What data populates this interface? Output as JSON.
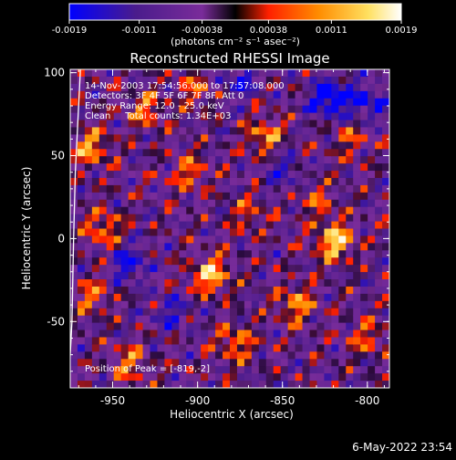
{
  "chart_data": {
    "type": "heatmap",
    "title": "Reconstructed RHESSI Image",
    "xlabel": "Heliocentric X (arcsec)",
    "ylabel": "Heliocentric Y (arcsec)",
    "xlim": [
      -975,
      -787
    ],
    "ylim": [
      -90,
      102
    ],
    "x_ticks": [
      -950,
      -900,
      -850,
      -800
    ],
    "y_ticks": [
      -50,
      0,
      50,
      100
    ],
    "colorbar": {
      "range": [
        -0.0019,
        0.0019
      ],
      "ticks": [
        -0.0019,
        -0.0011,
        -0.00038,
        0.00038,
        0.0011,
        0.0019
      ],
      "tick_labels": [
        "-0.0019",
        "-0.0011",
        "-0.00038",
        "0.00038",
        "0.0011",
        "0.0019"
      ],
      "unit_label": "(photons cm⁻² s⁻¹ asec⁻²)",
      "colors": [
        "#0000ff",
        "#4a1c8c",
        "#7a2c9a",
        "#000000",
        "#ff2000",
        "#ff8c00",
        "#ffe060",
        "#ffffff"
      ]
    },
    "annotations": [
      "14-Nov-2003 17:54:56.000 to 17:57:08.000",
      "Detectors: 3F 4F 5F 6F 7F 8F, Att 0",
      "Energy Range: 12.0 - 25.0 keV",
      "Clean     Total counts: 1.34E+03",
      "Position of Peak = [-819,-2]"
    ],
    "peak": {
      "x": -819,
      "y": -2
    },
    "limb_curve": [
      [
        -969,
        102
      ],
      [
        -972,
        40
      ],
      [
        -973,
        0
      ],
      [
        -974,
        -50
      ],
      [
        -976,
        -90
      ]
    ],
    "bright_sources": [
      {
        "x": -819,
        "y": -2,
        "v": 0.0019
      },
      {
        "x": -892,
        "y": -22,
        "v": 0.0017
      },
      {
        "x": -860,
        "y": 62,
        "v": 0.0013
      },
      {
        "x": -842,
        "y": -40,
        "v": 0.0013
      },
      {
        "x": -963,
        "y": 55,
        "v": 0.0014
      },
      {
        "x": -955,
        "y": 6,
        "v": 0.0012
      },
      {
        "x": -930,
        "y": 78,
        "v": 0.0011
      },
      {
        "x": -905,
        "y": 40,
        "v": 0.001
      },
      {
        "x": -878,
        "y": -63,
        "v": 0.0012
      },
      {
        "x": -940,
        "y": -75,
        "v": 0.0011
      },
      {
        "x": -800,
        "y": -60,
        "v": 0.0009
      },
      {
        "x": -900,
        "y": 90,
        "v": 0.0009
      },
      {
        "x": -830,
        "y": 22,
        "v": 0.0008
      },
      {
        "x": -962,
        "y": -35,
        "v": 0.001
      },
      {
        "x": -870,
        "y": 15,
        "v": 0.0008
      },
      {
        "x": -810,
        "y": 60,
        "v": 0.0008
      }
    ],
    "dark_sources": [
      {
        "x": -822,
        "y": 85,
        "v": -0.0019
      },
      {
        "x": -940,
        "y": -15,
        "v": -0.0012
      },
      {
        "x": -875,
        "y": 95,
        "v": -0.001
      },
      {
        "x": -800,
        "y": 82,
        "v": -0.0012
      },
      {
        "x": -850,
        "y": 40,
        "v": -0.0008
      },
      {
        "x": -915,
        "y": -45,
        "v": -0.0009
      }
    ]
  },
  "footer": {
    "timestamp": "6-May-2022 23:54"
  }
}
